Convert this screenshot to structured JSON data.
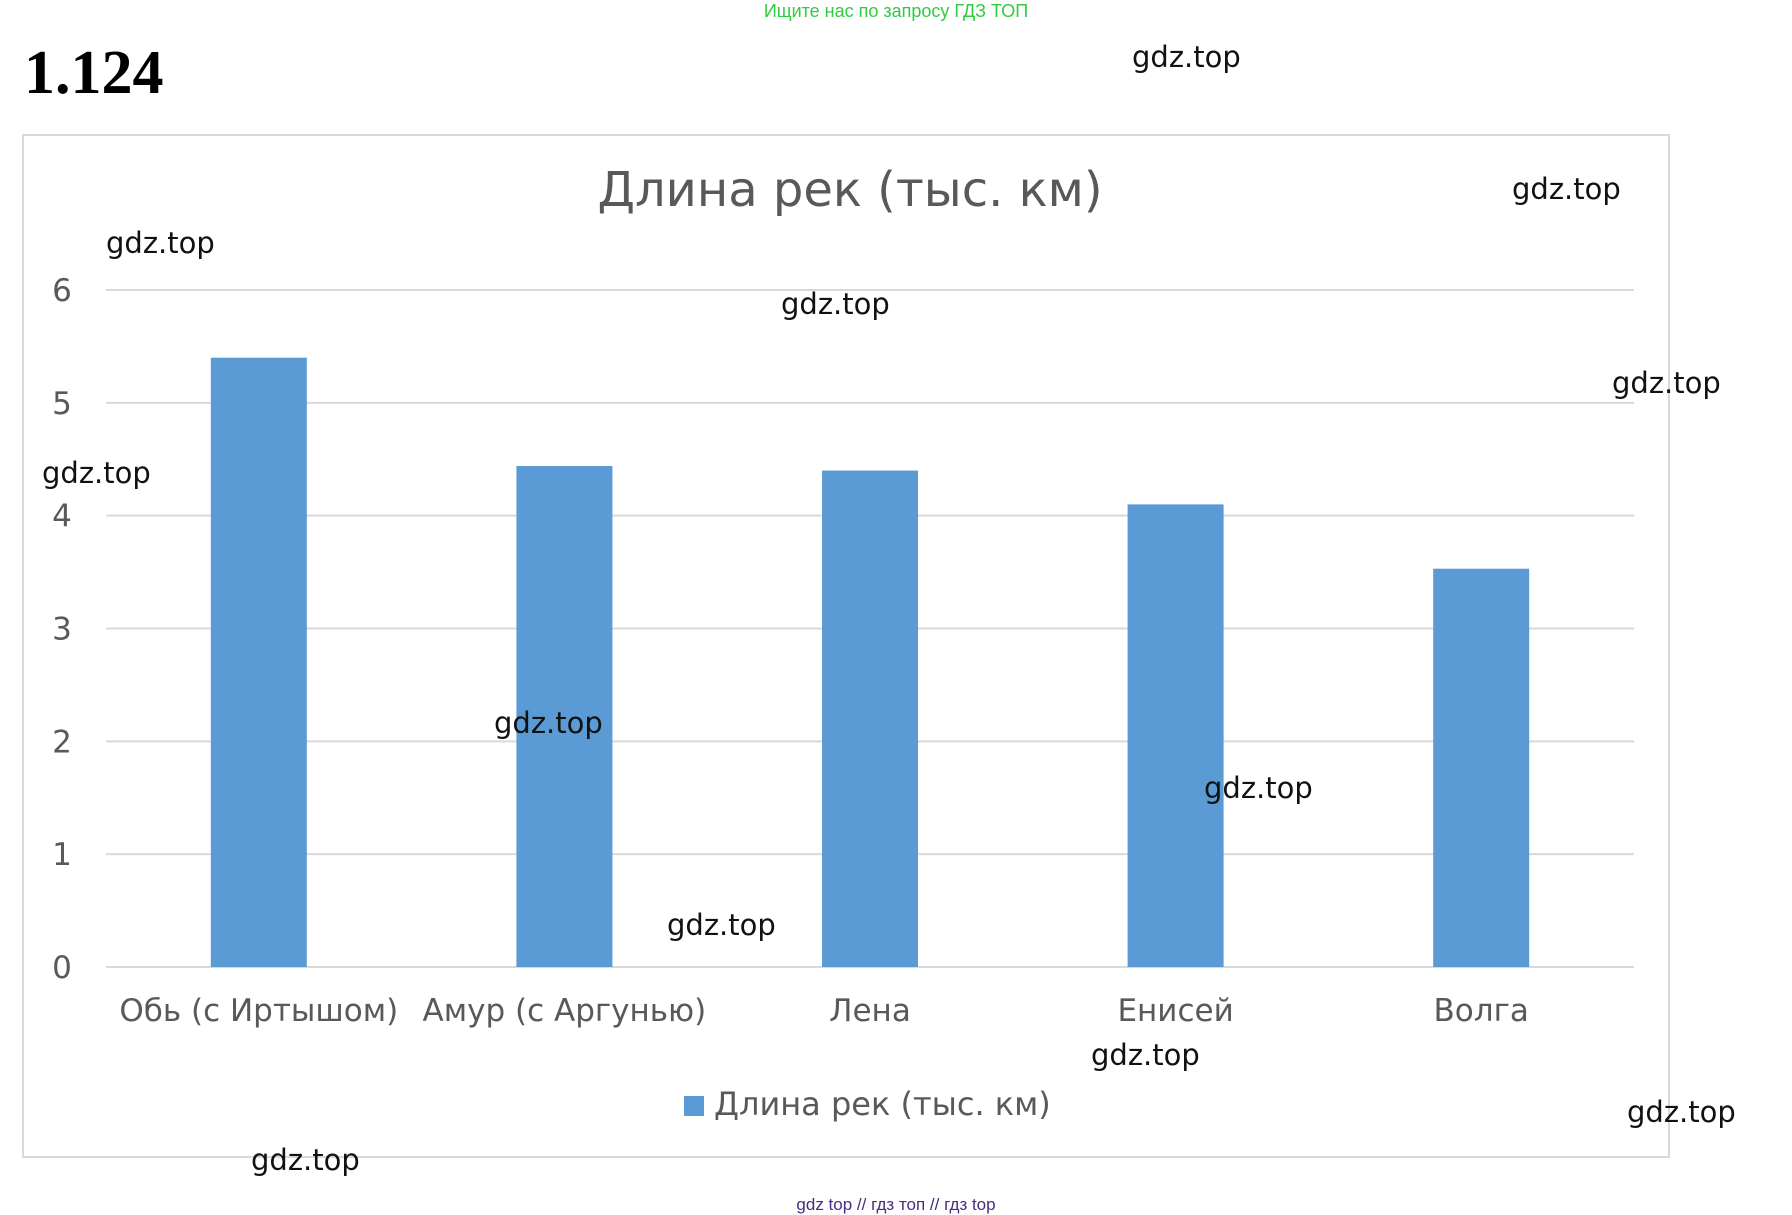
{
  "banner": "Ищите нас по запросу ГДЗ ТОП",
  "problem_number": "1.124",
  "footer": "gdz top  //  гдз топ  //  гдз top",
  "watermark_text": "gdz.top",
  "colors": {
    "bar": "#5b9bd5",
    "grid": "#d9d9d9",
    "text": "#595959",
    "banner": "#2ecc40"
  },
  "chart_data": {
    "type": "bar",
    "title": "Длина рек (тыс. км)",
    "categories": [
      "Обь (с Иртышом)",
      "Амур (с Аргунью)",
      "Лена",
      "Енисей",
      "Волга"
    ],
    "series": [
      {
        "name": "Длина рек (тыс. км)",
        "values": [
          5.4,
          4.44,
          4.4,
          4.1,
          3.53
        ]
      }
    ],
    "ylim": [
      0,
      6
    ],
    "yticks": [
      0,
      1,
      2,
      3,
      4,
      5,
      6
    ],
    "grid": true,
    "legend_position": "bottom"
  }
}
